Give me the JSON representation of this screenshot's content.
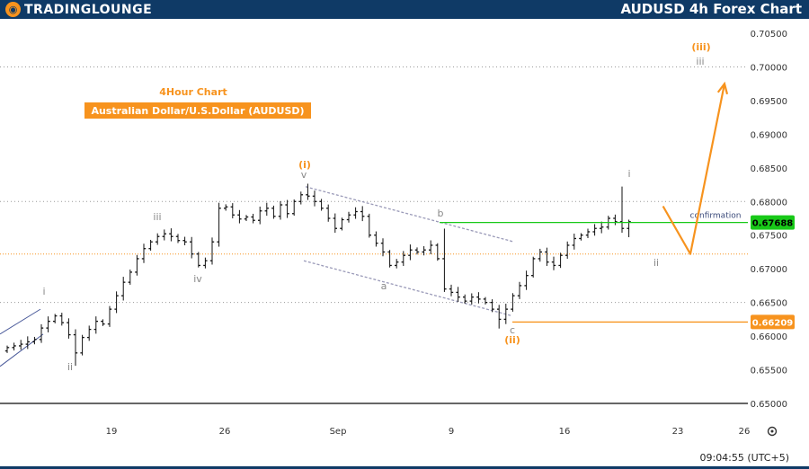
{
  "header": {
    "logo_text": "TRADINGLOUNGE",
    "title": "AUDUSD 4h Forex Chart"
  },
  "chart_data": {
    "type": "candlestick",
    "subtitle": "4Hour Chart",
    "title": "Australian Dollar/U.S.Dollar (AUDUSD)",
    "ylim": [
      0.65,
      0.705
    ],
    "y_ticks": [
      "0.70500",
      "0.70000",
      "0.69500",
      "0.69000",
      "0.68500",
      "0.68000",
      "0.67500",
      "0.67000",
      "0.66500",
      "0.66000",
      "0.65500",
      "0.65000"
    ],
    "x_ticks": [
      "19",
      "26",
      "Sep",
      "9",
      "16",
      "23",
      "26"
    ],
    "price_tags": [
      {
        "label": "0.67688",
        "value": 0.67688,
        "color": "#18c918"
      },
      {
        "label": "0.66209",
        "value": 0.66209,
        "color": "#f7931e"
      }
    ],
    "confirmation_label": "confirmation",
    "close_path": [
      [
        0,
        0.6583
      ],
      [
        2,
        0.6588
      ],
      [
        4,
        0.6595
      ],
      [
        5,
        0.6612
      ],
      [
        6,
        0.6622
      ],
      [
        7,
        0.663
      ],
      [
        8,
        0.662
      ],
      [
        9,
        0.6602
      ],
      [
        10,
        0.6575
      ],
      [
        11,
        0.6598
      ],
      [
        12,
        0.661
      ],
      [
        13,
        0.6622
      ],
      [
        14,
        0.6618
      ],
      [
        15,
        0.664
      ],
      [
        16,
        0.666
      ],
      [
        17,
        0.668
      ],
      [
        18,
        0.6695
      ],
      [
        19,
        0.6715
      ],
      [
        20,
        0.673
      ],
      [
        21,
        0.674
      ],
      [
        22,
        0.6748
      ],
      [
        23,
        0.6752
      ],
      [
        24,
        0.6748
      ],
      [
        25,
        0.6742
      ],
      [
        26,
        0.674
      ],
      [
        27,
        0.6722
      ],
      [
        28,
        0.6705
      ],
      [
        29,
        0.6712
      ],
      [
        30,
        0.674
      ],
      [
        31,
        0.679
      ],
      [
        32,
        0.6792
      ],
      [
        33,
        0.678
      ],
      [
        34,
        0.6774
      ],
      [
        35,
        0.6777
      ],
      [
        36,
        0.6772
      ],
      [
        37,
        0.6786
      ],
      [
        38,
        0.679
      ],
      [
        39,
        0.6778
      ],
      [
        40,
        0.6795
      ],
      [
        41,
        0.6782
      ],
      [
        42,
        0.68
      ],
      [
        43,
        0.681
      ],
      [
        44,
        0.6808
      ],
      [
        45,
        0.68
      ],
      [
        46,
        0.679
      ],
      [
        47,
        0.6775
      ],
      [
        48,
        0.676
      ],
      [
        49,
        0.6773
      ],
      [
        50,
        0.678
      ],
      [
        51,
        0.6785
      ],
      [
        52,
        0.6778
      ],
      [
        53,
        0.675
      ],
      [
        54,
        0.6738
      ],
      [
        55,
        0.6725
      ],
      [
        56,
        0.6705
      ],
      [
        57,
        0.671
      ],
      [
        58,
        0.672
      ],
      [
        59,
        0.6728
      ],
      [
        60,
        0.6725
      ],
      [
        61,
        0.6728
      ],
      [
        62,
        0.6735
      ],
      [
        63,
        0.6715
      ],
      [
        64,
        0.667
      ],
      [
        65,
        0.6665
      ],
      [
        66,
        0.6658
      ],
      [
        67,
        0.6652
      ],
      [
        68,
        0.6658
      ],
      [
        69,
        0.6655
      ],
      [
        70,
        0.665
      ],
      [
        71,
        0.664
      ],
      [
        72,
        0.6625
      ],
      [
        73,
        0.664
      ],
      [
        74,
        0.666
      ],
      [
        75,
        0.6675
      ],
      [
        76,
        0.669
      ],
      [
        77,
        0.6715
      ],
      [
        78,
        0.6725
      ],
      [
        79,
        0.671
      ],
      [
        80,
        0.6705
      ],
      [
        81,
        0.672
      ],
      [
        82,
        0.6735
      ],
      [
        83,
        0.6745
      ],
      [
        84,
        0.675
      ],
      [
        85,
        0.6755
      ],
      [
        86,
        0.676
      ],
      [
        87,
        0.6762
      ],
      [
        88,
        0.6775
      ],
      [
        89,
        0.677
      ],
      [
        90,
        0.676
      ],
      [
        91,
        0.677
      ]
    ],
    "wave_labels": [
      {
        "text": "i",
        "color": "#888888"
      },
      {
        "text": "ii",
        "color": "#888888"
      },
      {
        "text": "iii",
        "color": "#888888"
      },
      {
        "text": "iv",
        "color": "#888888"
      },
      {
        "text": "v",
        "color": "#888888"
      },
      {
        "text": "(i)",
        "color": "#f7931e"
      },
      {
        "text": "a",
        "color": "#888888"
      },
      {
        "text": "b",
        "color": "#888888"
      },
      {
        "text": "c",
        "color": "#888888"
      },
      {
        "text": "(ii)",
        "color": "#f7931e"
      },
      {
        "text": "i",
        "color": "#888888"
      },
      {
        "text": "ii",
        "color": "#888888"
      },
      {
        "text": "(iii)",
        "color": "#f7931e"
      },
      {
        "text": "iii",
        "color": "#888888"
      }
    ],
    "projection": [
      {
        "bar": 96,
        "value": 0.6793
      },
      {
        "bar": 100,
        "value": 0.6722
      },
      {
        "bar": 105,
        "value": 0.6975
      }
    ],
    "colors": {
      "candle": "#111111",
      "green_level": "#18c918",
      "orange": "#f7931e",
      "channel": "#9a9ab8",
      "dotted_grid": "#999999"
    }
  },
  "footer": {
    "time": "09:04:55 (UTC+5)",
    "settings_icon": "gear-icon"
  }
}
